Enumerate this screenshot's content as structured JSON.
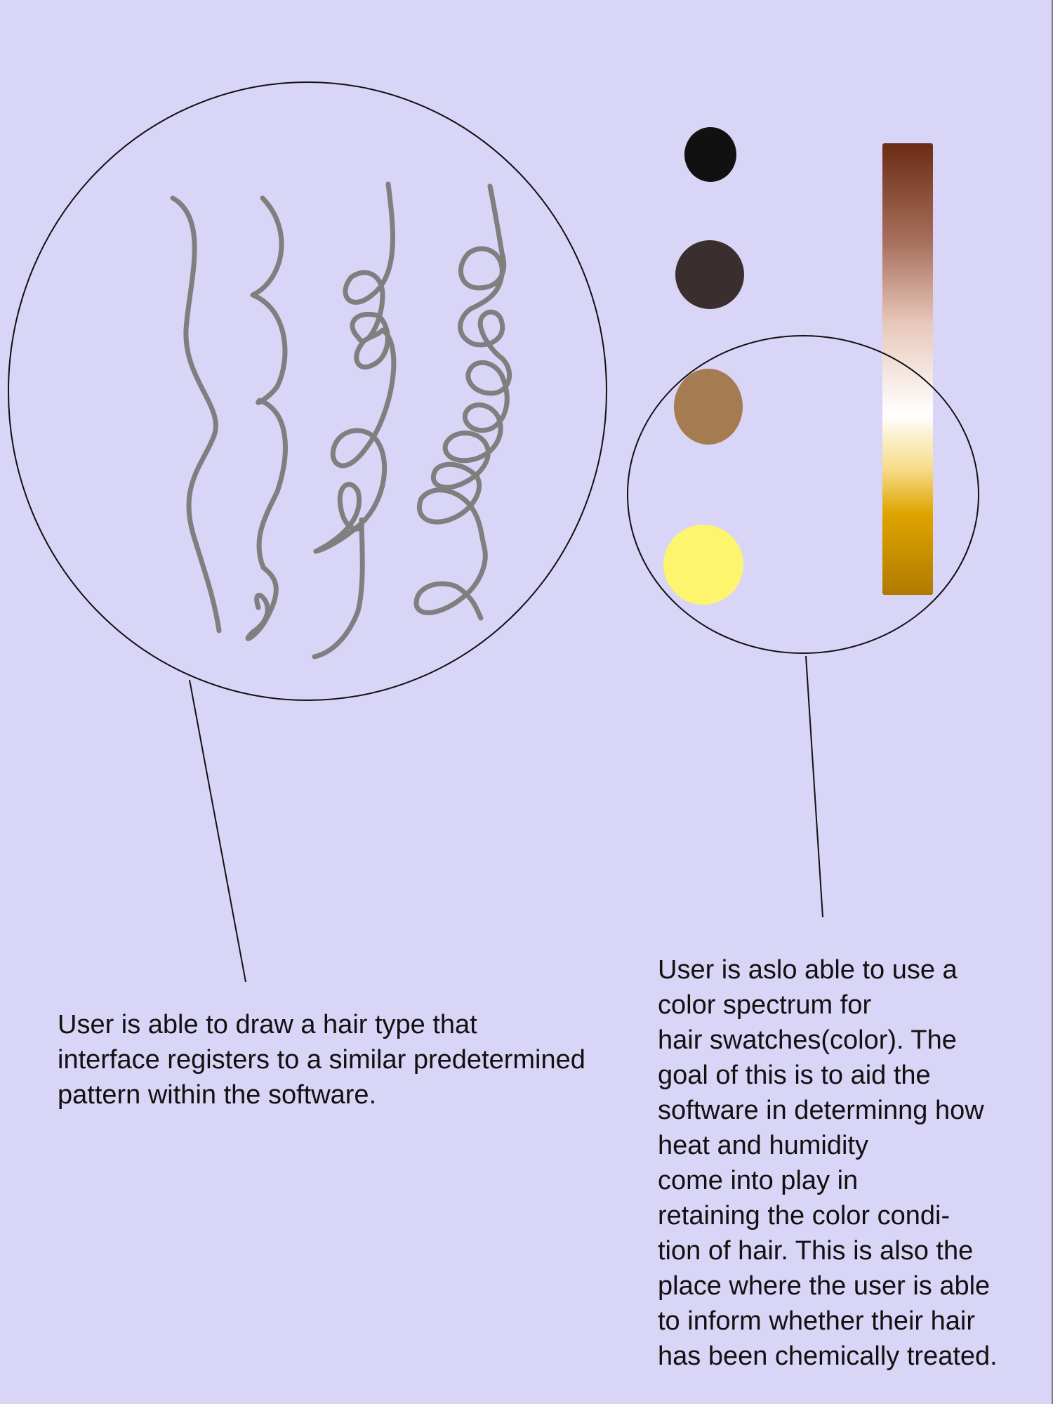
{
  "hair_pattern_panel": {
    "patterns": [
      "wavy",
      "curly",
      "coily",
      "tight-coil"
    ],
    "stroke_color": "#7f7f7f"
  },
  "color_panel": {
    "swatches": [
      {
        "name": "black",
        "color": "#111111"
      },
      {
        "name": "dark-brown",
        "color": "#3a2e2e"
      },
      {
        "name": "light-brown",
        "color": "#a57b52"
      },
      {
        "name": "blonde",
        "color": "#fdf56e"
      }
    ],
    "spectrum_stops": [
      "#6b2c14",
      "#a8705e",
      "#e8c8ba",
      "#ffffff",
      "#f6dc8a",
      "#e0a400",
      "#b07a00"
    ]
  },
  "captions": {
    "left": [
      "User is able to draw a hair type that",
      "interface registers to a similar predetermined",
      "pattern within the software."
    ],
    "right": [
      "User is aslo able to use a",
      "color spectrum for",
      "hair swatches(color). The",
      "goal of this is to aid the",
      "software in determinng how",
      "heat and humidity",
      "come into play in",
      "retaining the color condi-",
      "tion of hair. This is also the",
      "place where the user is able",
      "to inform whether their hair",
      "has been chemically treated."
    ]
  },
  "colors": {
    "background": "#d8d5f7",
    "outline": "#111111"
  }
}
